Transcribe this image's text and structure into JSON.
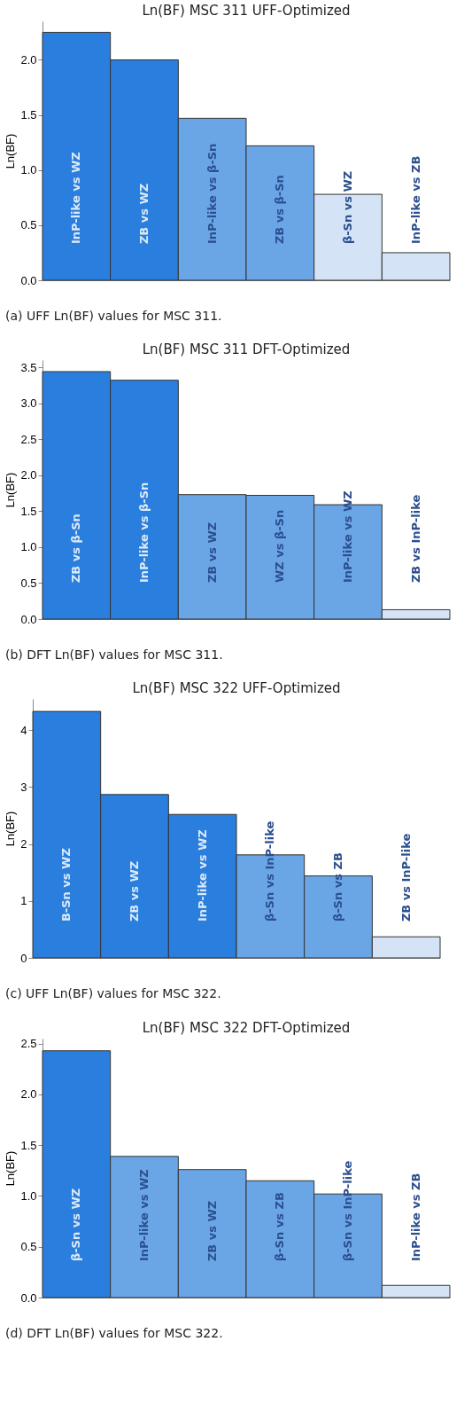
{
  "chart_data": [
    {
      "type": "bar",
      "title": "Ln(BF) MSC 311 UFF-Optimized",
      "ylabel": "Ln(BF)",
      "tick_labels": "y",
      "categories": [
        "InP-like vs WZ",
        "ZB vs WZ",
        "InP-like vs β-Sn",
        "ZB vs β-Sn",
        "β-Sn vs WZ",
        "InP-like vs ZB"
      ],
      "values": [
        2.25,
        2.0,
        1.47,
        1.22,
        0.78,
        0.25
      ],
      "colors": [
        "#2a7fde",
        "#2a7fde",
        "#6aa6e6",
        "#6aa6e6",
        "#d4e4f6",
        "#d4e4f6"
      ],
      "ylim": [
        0,
        2.35
      ],
      "yticks": [
        {
          "value": 0,
          "label": "0.0"
        },
        0.5,
        {
          "value": 1,
          "label": "1.0"
        },
        1.5,
        {
          "value": 2,
          "label": "2.0"
        }
      ],
      "annotations": [
        "(a) UFF Ln(BF) values for MSC 311."
      ]
    },
    {
      "type": "bar",
      "title": "Ln(BF) MSC 311 DFT-Optimized",
      "ylabel": "Ln(BF)",
      "tick_labels": "y",
      "categories": [
        "ZB vs β-Sn",
        "InP-like vs β-Sn",
        "ZB vs WZ",
        "WZ vs β-Sn",
        "InP-like vs WZ",
        "ZB vs InP-like"
      ],
      "values": [
        3.44,
        3.32,
        1.73,
        1.72,
        1.59,
        0.13
      ],
      "colors": [
        "#2a7fde",
        "#2a7fde",
        "#6aa6e6",
        "#6aa6e6",
        "#6aa6e6",
        "#d4e4f6"
      ],
      "ylim": [
        0,
        3.6
      ],
      "yticks": [
        {
          "value": 0,
          "label": "0.0"
        },
        0.5,
        {
          "value": 1,
          "label": "1.0"
        },
        1.5,
        {
          "value": 2,
          "label": "2.0"
        },
        2.5,
        {
          "value": 3,
          "label": "3.0"
        },
        3.5
      ],
      "annotations": [
        "(b) DFT Ln(BF) values for MSC 311."
      ]
    },
    {
      "type": "bar",
      "title": "Ln(BF) MSC 322 UFF-Optimized",
      "ylabel": "Ln(BF)",
      "tick_labels": "y",
      "categories": [
        "B-Sn vs WZ",
        "ZB vs WZ",
        "InP-like vs WZ",
        "β-Sn vs InP-like",
        "β-Sn vs ZB",
        "ZB vs InP-like"
      ],
      "values": [
        4.33,
        2.87,
        2.52,
        1.81,
        1.44,
        0.37
      ],
      "colors": [
        "#2a7fde",
        "#2a7fde",
        "#2a7fde",
        "#6aa6e6",
        "#6aa6e6",
        "#d4e4f6"
      ],
      "ylim": [
        0,
        4.55
      ],
      "yticks": [
        0,
        1,
        2,
        3,
        4
      ],
      "annotations": [
        "(c) UFF Ln(BF) values for MSC 322."
      ]
    },
    {
      "type": "bar",
      "title": "Ln(BF) MSC 322 DFT-Optimized",
      "ylabel": "Ln(BF)",
      "tick_labels": "y",
      "categories": [
        "β-Sn vs WZ",
        "InP-like vs WZ",
        "ZB vs WZ",
        "β-Sn vs ZB",
        "β-Sn vs InP-like",
        "InP-like vs ZB"
      ],
      "values": [
        2.43,
        1.39,
        1.26,
        1.15,
        1.02,
        0.12
      ],
      "colors": [
        "#2a7fde",
        "#6aa6e6",
        "#6aa6e6",
        "#6aa6e6",
        "#6aa6e6",
        "#d4e4f6"
      ],
      "ylim": [
        0,
        2.55
      ],
      "yticks": [
        {
          "value": 0,
          "label": "0.0"
        },
        0.5,
        {
          "value": 1,
          "label": "1.0"
        },
        1.5,
        {
          "value": 2,
          "label": "2.0"
        },
        2.5
      ],
      "annotations": [
        "(d) DFT Ln(BF) values for MSC 322."
      ]
    }
  ]
}
